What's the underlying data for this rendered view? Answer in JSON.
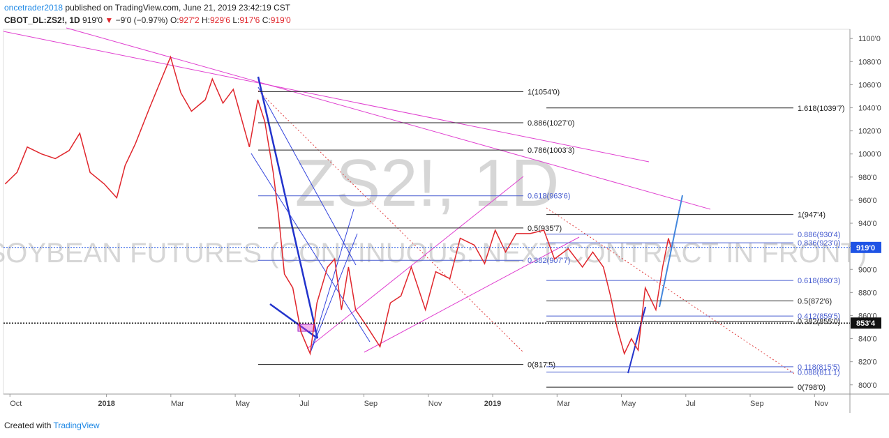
{
  "header": {
    "author": "oncetrader2018",
    "published": "published on TradingView.com, June 21, 2019 23:42:19 CST",
    "symbol": "CBOT_DL:ZS2!, 1D",
    "last": "919'0",
    "change_arrow": "▼",
    "change": "−9'0 (−0.97%)",
    "ohlc": [
      {
        "label": "O:",
        "value": "927'2"
      },
      {
        "label": "H:",
        "value": "929'6"
      },
      {
        "label": "L:",
        "value": "917'6"
      },
      {
        "label": "C:",
        "value": "919'0"
      }
    ]
  },
  "footer": {
    "text": "Created with",
    "brand": "TradingView"
  },
  "chart_data": {
    "type": "line",
    "watermark": "ZS2!, 1D",
    "watermark_name": "SOYBEAN FUTURES (CONTINUOUS: NEXT CONTRACT IN FRONT)",
    "color": "#e0262c",
    "x": [
      -0.15,
      0.22,
      0.54,
      0.98,
      1.41,
      1.84,
      2.17,
      2.49,
      2.93,
      3.32,
      3.58,
      3.9,
      4.34,
      4.62,
      4.99,
      5.31,
      5.64,
      6.07,
      6.29,
      6.62,
      6.94,
      7.16,
      7.44,
      7.7,
      7.92,
      8.18,
      8.35,
      8.53,
      8.79,
      9.04,
      9.33,
      9.54,
      9.87,
      10.09,
      10.3,
      10.52,
      10.74,
      11.06,
      11.5,
      11.82,
      12.15,
      12.47,
      12.91,
      13.23,
      13.67,
      13.99,
      14.43,
      14.75,
      15.08,
      15.4,
      15.73,
      16.16,
      16.59,
      16.92,
      17.35,
      17.79,
      18.11,
      18.44,
      18.66,
      18.87,
      19.09,
      19.31,
      19.52,
      19.74,
      20.07,
      20.28,
      20.46,
      20.54
    ],
    "values": [
      974,
      984,
      1006,
      1000,
      996,
      1003,
      1018,
      984,
      974,
      962,
      990,
      1009,
      1040,
      1059,
      1084,
      1053,
      1037,
      1047,
      1065,
      1044,
      1056,
      1034,
      1006,
      1047,
      1028,
      984,
      946,
      896,
      884,
      846,
      827,
      871,
      902,
      909,
      865,
      902,
      865,
      852,
      833,
      871,
      877,
      902,
      865,
      898,
      892,
      927,
      921,
      905,
      934,
      915,
      931,
      931,
      934,
      909,
      918,
      902,
      915,
      902,
      877,
      849,
      827,
      840,
      830,
      884,
      865,
      902,
      927,
      919
    ],
    "xlim": [
      -0.2,
      26.1
    ],
    "xticks": [
      {
        "value": 0,
        "label": "Oct"
      },
      {
        "value": 3,
        "label": "2018"
      },
      {
        "value": 5,
        "label": "Mar"
      },
      {
        "value": 7,
        "label": "May"
      },
      {
        "value": 9,
        "label": "Jul"
      },
      {
        "value": 11,
        "label": "Sep"
      },
      {
        "value": 13,
        "label": "Nov"
      },
      {
        "value": 15,
        "label": "2019"
      },
      {
        "value": 17,
        "label": "Mar"
      },
      {
        "value": 19,
        "label": "May"
      },
      {
        "value": 21,
        "label": "Jul"
      },
      {
        "value": 23,
        "label": "Sep"
      },
      {
        "value": 25,
        "label": "Nov"
      }
    ],
    "ylim": [
      792,
      1108
    ],
    "yticks": [
      {
        "value": 800,
        "label": "800'0"
      },
      {
        "value": 820,
        "label": "820'0"
      },
      {
        "value": 840,
        "label": "840'0"
      },
      {
        "value": 860,
        "label": "860'0"
      },
      {
        "value": 880,
        "label": "880'0"
      },
      {
        "value": 900,
        "label": "900'0"
      },
      {
        "value": 920,
        "label": "920'0"
      },
      {
        "value": 940,
        "label": "940'0"
      },
      {
        "value": 960,
        "label": "960'0"
      },
      {
        "value": 980,
        "label": "980'0"
      },
      {
        "value": 1000,
        "label": "1000'0"
      },
      {
        "value": 1020,
        "label": "1020'0"
      },
      {
        "value": 1040,
        "label": "1040'0"
      },
      {
        "value": 1060,
        "label": "1060'0"
      },
      {
        "value": 1080,
        "label": "1080'0"
      },
      {
        "value": 1100,
        "label": "1100'0"
      }
    ],
    "fib_left": [
      {
        "value": 1054,
        "label": "1(1054'0)",
        "color": "#222222"
      },
      {
        "value": 1027,
        "label": "0.886(1027'0)",
        "color": "#222222"
      },
      {
        "value": 1003.375,
        "label": "0.786(1003'3)",
        "color": "#222222"
      },
      {
        "value": 963.75,
        "label": "0.618(963'6)",
        "color": "#4a5fd0"
      },
      {
        "value": 935.875,
        "label": "0.5(935'7)",
        "color": "#222222"
      },
      {
        "value": 907.875,
        "label": "0.382(907'7)",
        "color": "#4a5fd0"
      },
      {
        "value": 817.625,
        "label": "0(817'5)",
        "color": "#222222"
      }
    ],
    "fib_right": [
      {
        "value": 1039.875,
        "label": "1.618(1039'7)",
        "color": "#222222"
      },
      {
        "value": 947.5,
        "label": "1(947'4)",
        "color": "#222222"
      },
      {
        "value": 930.5,
        "label": "0.886(930'4)",
        "color": "#4a5fd0"
      },
      {
        "value": 923,
        "label": "0.836(923'0)",
        "color": "#4a5fd0"
      },
      {
        "value": 890.375,
        "label": "0.618(890'3)",
        "color": "#4a5fd0"
      },
      {
        "value": 872.75,
        "label": "0.5(872'6)",
        "color": "#222222"
      },
      {
        "value": 859.625,
        "label": "0.412(859'5)",
        "color": "#4a5fd0"
      },
      {
        "value": 855,
        "label": "0.382(855'0)",
        "color": "#222222"
      },
      {
        "value": 815.625,
        "label": "0.118(815'5)",
        "color": "#4a5fd0"
      },
      {
        "value": 811.125,
        "label": "0.088(811'1)",
        "color": "#4a5fd0"
      },
      {
        "value": 798,
        "label": "0(798'0)",
        "color": "#222222"
      }
    ],
    "price_tags": [
      {
        "value": 919,
        "label": "919'0",
        "color": "#1e53e5"
      },
      {
        "value": 853.5,
        "label": "853'4",
        "color": "#111111"
      }
    ]
  }
}
